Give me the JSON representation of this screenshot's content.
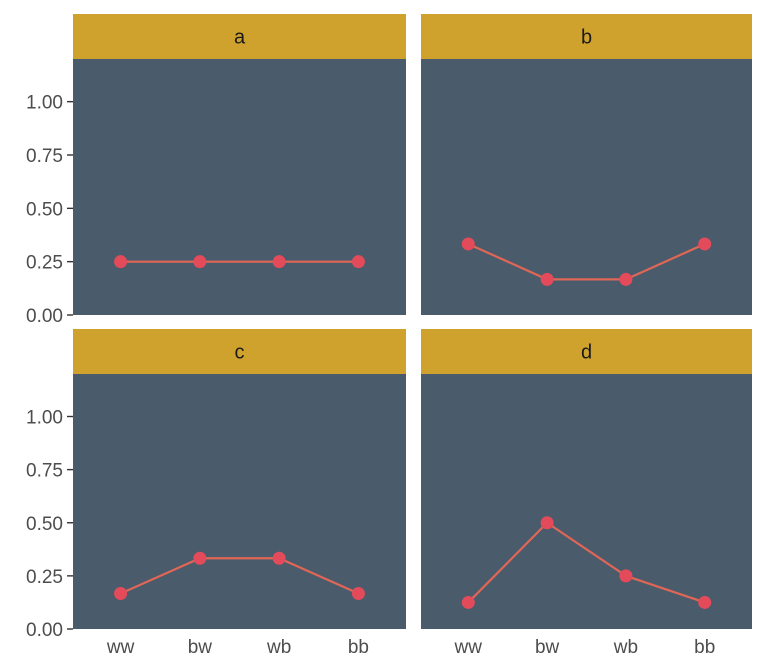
{
  "colors": {
    "panel_bg": "#4a5b6c",
    "strip_bg": "#cfa22d",
    "line": "#e06656",
    "point": "#e34b5a",
    "tick": "#333333"
  },
  "chart_data": {
    "type": "line",
    "facet_layout": "2x2",
    "categories": [
      "ww",
      "bw",
      "wb",
      "bb"
    ],
    "ylim": [
      0,
      1.2
    ],
    "yticks": [
      "0.00",
      "0.25",
      "0.50",
      "0.75",
      "1.00"
    ],
    "ytick_values": [
      0,
      0.25,
      0.5,
      0.75,
      1.0
    ],
    "grid": false,
    "panels": [
      {
        "label": "a",
        "values": [
          0.25,
          0.25,
          0.25,
          0.25
        ]
      },
      {
        "label": "b",
        "values": [
          0.333,
          0.167,
          0.167,
          0.333
        ]
      },
      {
        "label": "c",
        "values": [
          0.167,
          0.333,
          0.333,
          0.167
        ]
      },
      {
        "label": "d",
        "values": [
          0.125,
          0.5,
          0.25,
          0.125
        ]
      }
    ]
  }
}
